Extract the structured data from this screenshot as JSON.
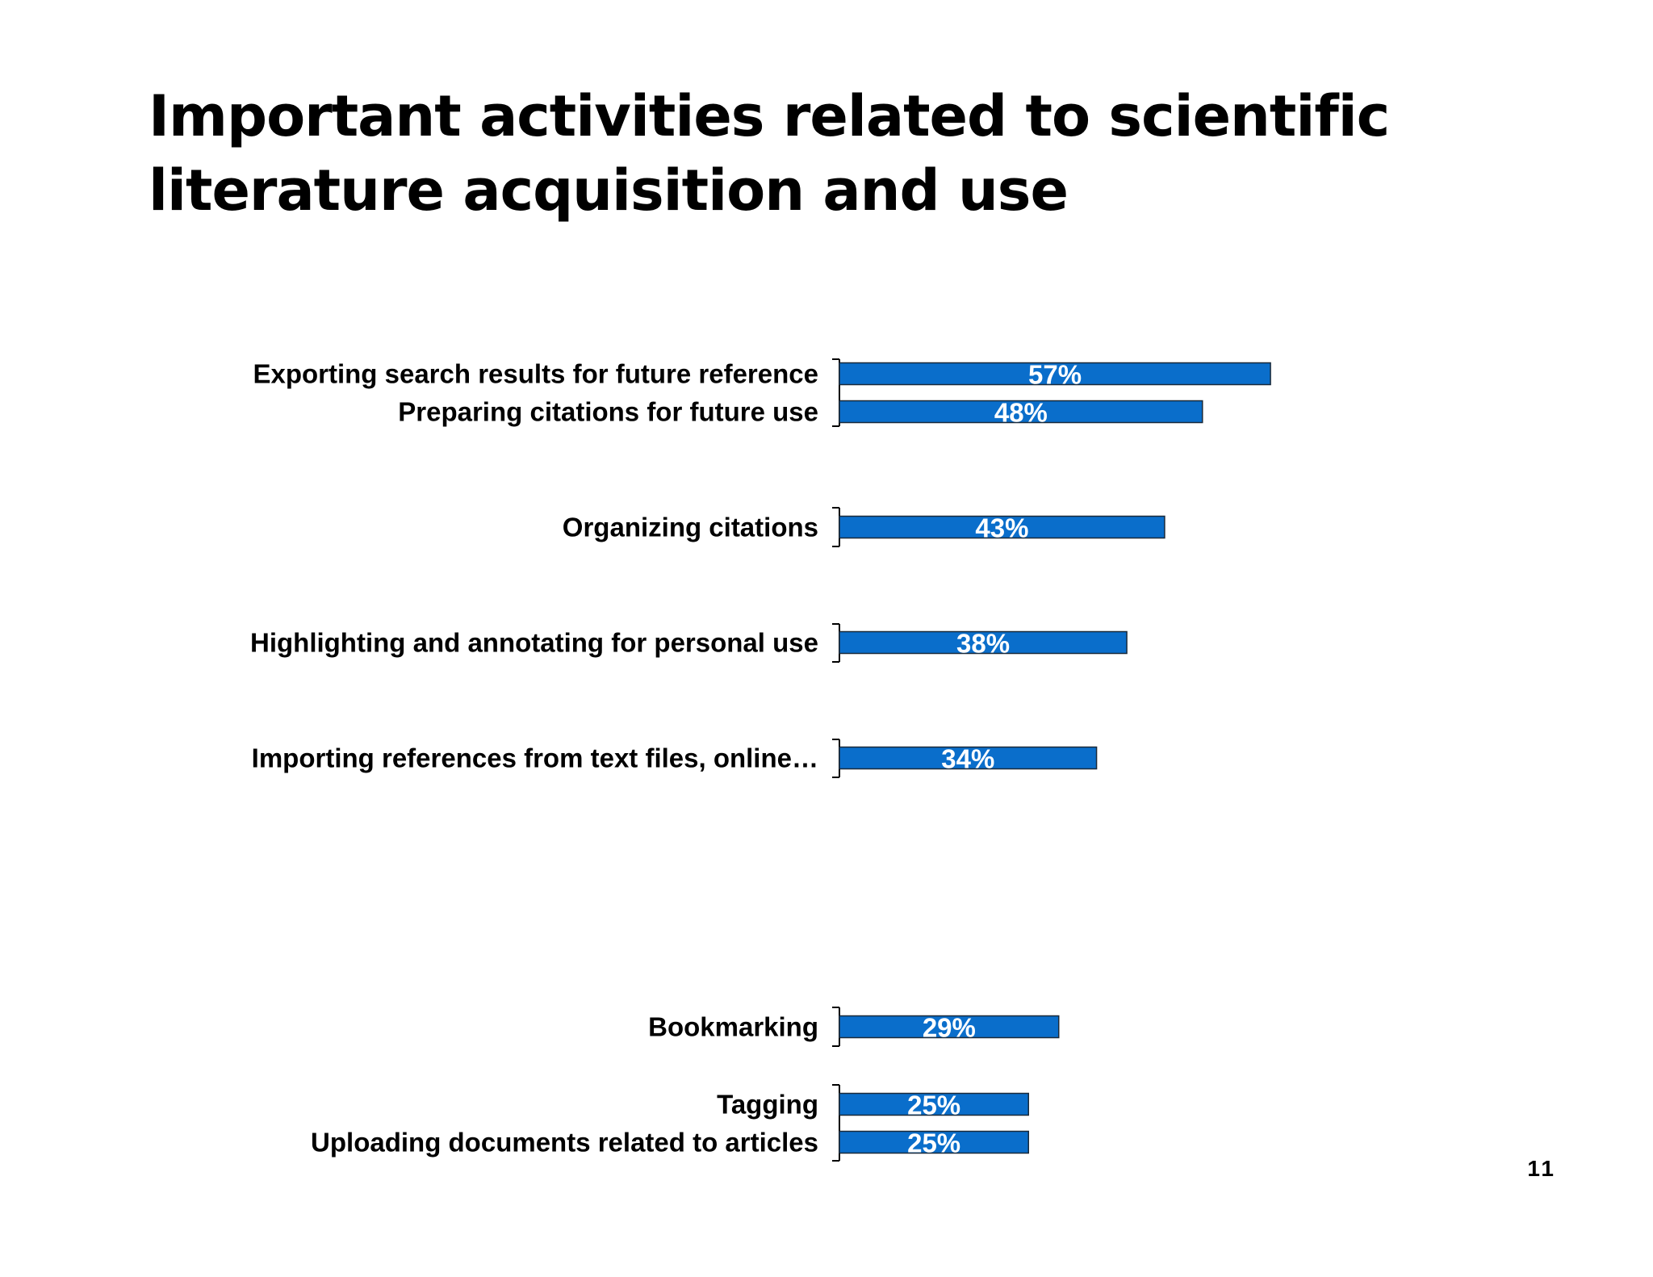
{
  "title_lines": [
    "Important activities related to scientific",
    "literature acquisition and use"
  ],
  "page_number": "11",
  "colors": {
    "bar_fill": "#0a6ecb",
    "bar_stroke": "#1a2a3a",
    "axis": "#000000",
    "value_label": "#ffffff",
    "category_label": "#000000"
  },
  "chart_data": {
    "type": "bar",
    "orientation": "horizontal",
    "categories": [
      "Exporting search results for future reference",
      "Preparing citations for future use",
      "Organizing citations",
      "Highlighting and annotating for personal use",
      "Importing references from text files, online…",
      "Bookmarking",
      "Tagging",
      "Uploading documents related to articles"
    ],
    "values": [
      57,
      48,
      43,
      38,
      34,
      29,
      25,
      25
    ],
    "data_labels": [
      "57%",
      "48%",
      "43%",
      "38%",
      "34%",
      "29%",
      "25%",
      "25%"
    ],
    "unit": "%",
    "xlim": [
      0,
      100
    ],
    "grid": false,
    "legend": false
  }
}
